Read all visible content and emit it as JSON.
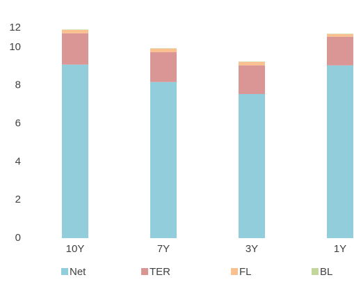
{
  "chart_data": {
    "type": "stacked_bar",
    "categories": [
      "10Y",
      "7Y",
      "3Y",
      "1Y"
    ],
    "series": [
      {
        "name": "Net",
        "color": "#92cddc",
        "values": [
          9.09,
          8.18,
          7.55,
          9.05
        ]
      },
      {
        "name": "TER",
        "color": "#d99694",
        "values": [
          1.64,
          1.56,
          1.5,
          1.5
        ]
      },
      {
        "name": "FL",
        "color": "#fac090",
        "values": [
          0.18,
          0.19,
          0.18,
          0.14
        ]
      },
      {
        "name": "BL",
        "color": "#c3d69b",
        "values": [
          0.02,
          0.02,
          0.02,
          0.02
        ]
      }
    ],
    "ylim": [
      0,
      12
    ],
    "yticks": [
      0,
      2,
      4,
      6,
      8,
      10,
      12
    ],
    "grid": false,
    "legend": "bottom"
  }
}
